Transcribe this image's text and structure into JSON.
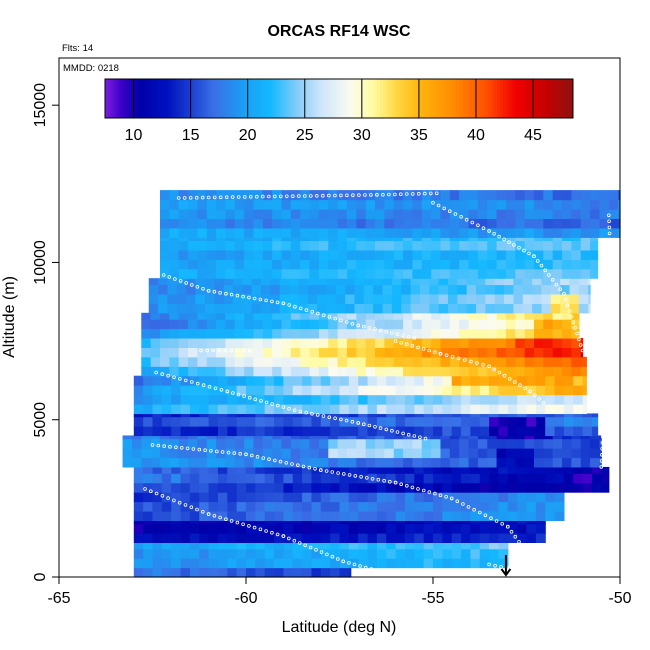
{
  "chart_data": {
    "type": "heatmap",
    "title": "ORCAS RF14 WSC",
    "annotations": [
      "Flts: 14",
      "MMDD: 0218"
    ],
    "xlabel": "Latitude (deg N)",
    "ylabel": "Altitude (m)",
    "xlim": [
      -65,
      -50
    ],
    "ylim": [
      0,
      16500
    ],
    "xticks": [
      -65,
      -60,
      -55,
      -50
    ],
    "yticks": [
      0,
      5000,
      10000,
      15000
    ],
    "colorbar": {
      "range": [
        7.5,
        48.5
      ],
      "ticks": [
        10,
        15,
        20,
        25,
        30,
        35,
        40,
        45
      ],
      "stops": [
        {
          "v": 7.5,
          "c": "#7a1fe0"
        },
        {
          "v": 9,
          "c": "#3a00c8"
        },
        {
          "v": 10.5,
          "c": "#0000a8"
        },
        {
          "v": 13,
          "c": "#0012c0"
        },
        {
          "v": 15,
          "c": "#1a40d0"
        },
        {
          "v": 17,
          "c": "#3a6ee6"
        },
        {
          "v": 19.5,
          "c": "#1c9cf4"
        },
        {
          "v": 22,
          "c": "#14b8ff"
        },
        {
          "v": 24.5,
          "c": "#8ccdf8"
        },
        {
          "v": 26.5,
          "c": "#cfe6fb"
        },
        {
          "v": 29,
          "c": "#fbfbf0"
        },
        {
          "v": 31,
          "c": "#fffba0"
        },
        {
          "v": 33,
          "c": "#ffd845"
        },
        {
          "v": 35,
          "c": "#ffb60e"
        },
        {
          "v": 38,
          "c": "#ff8c00"
        },
        {
          "v": 41,
          "c": "#ff4d00"
        },
        {
          "v": 43.5,
          "c": "#f00000"
        },
        {
          "v": 46,
          "c": "#c80000"
        },
        {
          "v": 48.5,
          "c": "#8e1212"
        }
      ]
    },
    "field": {
      "cell_lat": 0.25,
      "cell_alt": 300,
      "bands": [
        {
          "alt": [
            0,
            300
          ],
          "lat": [
            -63,
            -57.2
          ],
          "v": [
            17,
            14
          ]
        },
        {
          "alt": [
            300,
            1100
          ],
          "lat": [
            -63,
            -53
          ],
          "v": [
            19,
            23
          ]
        },
        {
          "alt": [
            1100,
            1800
          ],
          "lat": [
            -63,
            -52
          ],
          "v": [
            12,
            14
          ]
        },
        {
          "alt": [
            1800,
            2700
          ],
          "lat": [
            -63,
            -51.5
          ],
          "v": [
            15,
            19
          ]
        },
        {
          "alt": [
            2700,
            3500
          ],
          "lat": [
            -63,
            -50.3
          ],
          "v": [
            17,
            10
          ]
        },
        {
          "alt": [
            3500,
            4500
          ],
          "lat": [
            -63.3,
            -50.5
          ],
          "v": [
            19,
            15
          ]
        },
        {
          "alt": [
            4500,
            5200
          ],
          "lat": [
            -63,
            -50.6
          ],
          "v": [
            15,
            18
          ]
        },
        {
          "alt": [
            5200,
            5800
          ],
          "lat": [
            -63,
            -50.9
          ],
          "v": [
            20,
            28
          ]
        },
        {
          "alt": [
            5800,
            6400
          ],
          "lat": [
            -63,
            -50.9
          ],
          "v": [
            18,
            35
          ]
        },
        {
          "alt": [
            6400,
            7000
          ],
          "lat": [
            -62.8,
            -50.9
          ],
          "v": [
            22,
            40
          ]
        },
        {
          "alt": [
            7000,
            7600
          ],
          "lat": [
            -62.8,
            -51
          ],
          "v": [
            24,
            44
          ]
        },
        {
          "alt": [
            7600,
            8400
          ],
          "lat": [
            -62.8,
            -51.1
          ],
          "v": [
            18,
            34
          ]
        },
        {
          "alt": [
            8400,
            9500
          ],
          "lat": [
            -62.6,
            -50.8
          ],
          "v": [
            19,
            26
          ]
        },
        {
          "alt": [
            9500,
            10800
          ],
          "lat": [
            -62.3,
            -50.6
          ],
          "v": [
            20,
            23
          ]
        },
        {
          "alt": [
            10800,
            12300
          ],
          "lat": [
            -62.3,
            -50
          ],
          "v": [
            20,
            18
          ]
        }
      ],
      "patches": [
        {
          "alt": [
            6800,
            7600
          ],
          "lat": [
            -53,
            -51.1
          ],
          "v": 42
        },
        {
          "alt": [
            5900,
            6300
          ],
          "lat": [
            -54.5,
            -51.3
          ],
          "v": 36
        },
        {
          "alt": [
            7600,
            8200
          ],
          "lat": [
            -52.5,
            -51.3
          ],
          "v": 36
        },
        {
          "alt": [
            8200,
            9000
          ],
          "lat": [
            -52,
            -51.3
          ],
          "v": 32
        },
        {
          "alt": [
            3000,
            4000
          ],
          "lat": [
            -53.5,
            -52.3
          ],
          "v": 12
        },
        {
          "alt": [
            12400,
            12600
          ],
          "lat": [
            -52,
            -50
          ],
          "v": 22
        },
        {
          "alt": [
            2200,
            3400
          ],
          "lat": [
            -51.5,
            -50
          ],
          "v": 10
        },
        {
          "alt": [
            3800,
            4400
          ],
          "lat": [
            -58,
            -55
          ],
          "v": 25
        },
        {
          "alt": [
            4200,
            5000
          ],
          "lat": [
            -53.5,
            -52
          ],
          "v": 10
        }
      ]
    }
  }
}
